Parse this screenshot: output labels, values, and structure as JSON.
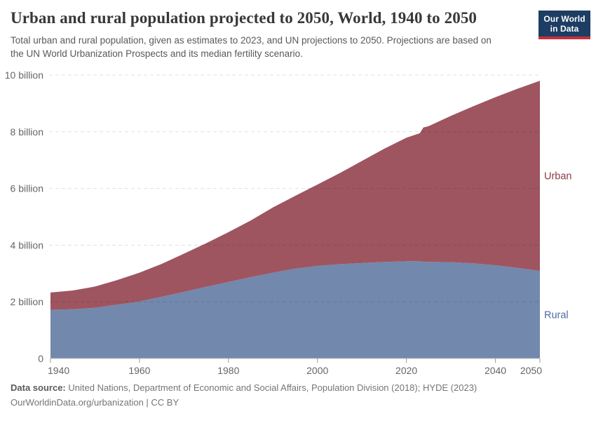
{
  "header": {
    "title": "Urban and rural population projected to 2050, World, 1940 to 2050",
    "subtitle": "Total urban and rural population, given as estimates to 2023, and UN projections to 2050. Projections are based on the UN World Urbanization Prospects and its median fertility scenario."
  },
  "logo": {
    "line1": "Our World",
    "line2": "in Data",
    "bg_color": "#1d3d63",
    "bar_color": "#c5303b"
  },
  "footer": {
    "datasource_label": "Data source:",
    "datasource_text": "United Nations, Department of Economic and Social Affairs, Population Division (2018); HYDE (2023)",
    "link_line": "OurWorldinData.org/urbanization | CC BY"
  },
  "chart_data": {
    "type": "area",
    "stacked": true,
    "title": "Urban and rural population projected to 2050, World, 1940 to 2050",
    "unit": "billion people",
    "xlim": [
      1940,
      2050
    ],
    "ylim": [
      0,
      10
    ],
    "grid": "dashed horizontal",
    "legend_position": "right edge labels",
    "projection_break_year": 2023,
    "x_ticks": [
      1940,
      1960,
      1980,
      2000,
      2020,
      2040,
      2050
    ],
    "y_ticks": [
      {
        "value": 0,
        "label": "0"
      },
      {
        "value": 2,
        "label": "2 billion"
      },
      {
        "value": 4,
        "label": "4 billion"
      },
      {
        "value": 6,
        "label": "6 billion"
      },
      {
        "value": 8,
        "label": "8 billion"
      },
      {
        "value": 10,
        "label": "10 billion"
      }
    ],
    "years_estimate": [
      1940,
      1945,
      1950,
      1955,
      1960,
      1965,
      1970,
      1975,
      1980,
      1985,
      1990,
      1995,
      2000,
      2005,
      2010,
      2015,
      2020,
      2023
    ],
    "years_projection": [
      2023.8,
      2025,
      2030,
      2035,
      2040,
      2045,
      2050
    ],
    "series": [
      {
        "name": "Rural",
        "color": "#7288ad",
        "label_color": "#4e6ba3",
        "estimate": [
          1.72,
          1.74,
          1.79,
          1.9,
          2.01,
          2.18,
          2.35,
          2.53,
          2.7,
          2.87,
          3.03,
          3.17,
          3.27,
          3.33,
          3.37,
          3.41,
          3.43,
          3.44
        ],
        "projection": [
          3.41,
          3.41,
          3.4,
          3.36,
          3.29,
          3.2,
          3.09
        ]
      },
      {
        "name": "Urban",
        "color": "#9e5560",
        "label_color": "#8c3a46",
        "estimate": [
          0.61,
          0.66,
          0.75,
          0.87,
          1.02,
          1.16,
          1.35,
          1.54,
          1.76,
          2.0,
          2.3,
          2.57,
          2.87,
          3.21,
          3.6,
          3.99,
          4.36,
          4.51
        ],
        "projection": [
          4.74,
          4.79,
          5.16,
          5.54,
          5.93,
          6.32,
          6.71
        ]
      }
    ],
    "total_estimate_endpoints": {
      "start_1940": 2.33,
      "end_2023": 7.95
    },
    "total_projection_endpoints": {
      "start_2023": 8.15,
      "end_2050": 9.8
    }
  }
}
